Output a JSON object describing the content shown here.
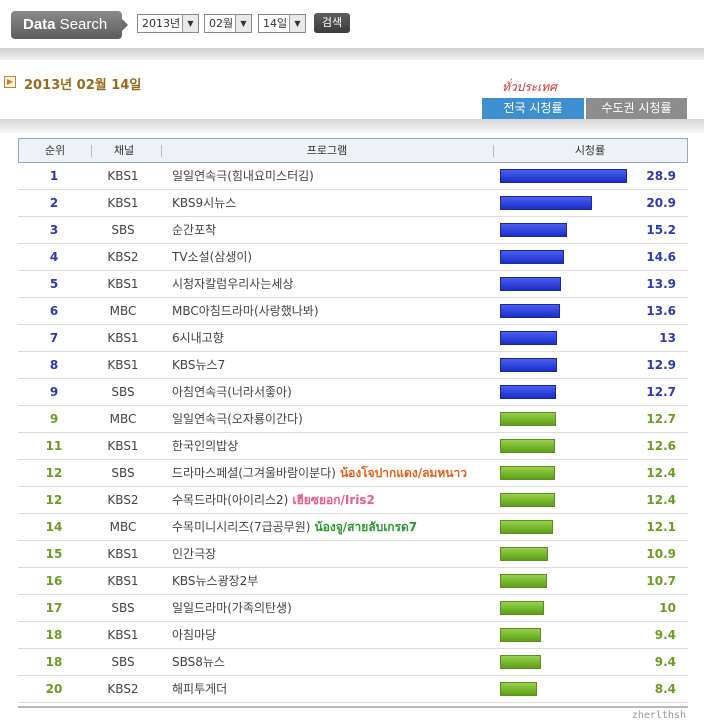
{
  "search": {
    "button_bold": "Data",
    "button_light": " Search",
    "year": "2013년",
    "month": "02월",
    "day": "14일",
    "submit": "검색"
  },
  "heading": {
    "date": "2013년 02월 14일",
    "thai_note": "ทั่วประเทศ"
  },
  "tabs": [
    {
      "label": "전국 시청률",
      "active": true
    },
    {
      "label": "수도권 시청률",
      "active": false
    }
  ],
  "columns": {
    "rank": "순위",
    "channel": "채널",
    "program": "프로그램",
    "rating": "시청률"
  },
  "scale_max": 30,
  "rows": [
    {
      "rank": "1",
      "channel": "KBS1",
      "program": "일일연속극(힘내요미스터김)",
      "rating": "28.9",
      "value": 28.9,
      "color": "blue",
      "note": ""
    },
    {
      "rank": "2",
      "channel": "KBS1",
      "program": "KBS9시뉴스",
      "rating": "20.9",
      "value": 20.9,
      "color": "blue",
      "note": ""
    },
    {
      "rank": "3",
      "channel": "SBS",
      "program": "순간포착",
      "rating": "15.2",
      "value": 15.2,
      "color": "blue",
      "note": ""
    },
    {
      "rank": "4",
      "channel": "KBS2",
      "program": "TV소설(삼생이)",
      "rating": "14.6",
      "value": 14.6,
      "color": "blue",
      "note": ""
    },
    {
      "rank": "5",
      "channel": "KBS1",
      "program": "시청자칼럼우리사는세상",
      "rating": "13.9",
      "value": 13.9,
      "color": "blue",
      "note": ""
    },
    {
      "rank": "6",
      "channel": "MBC",
      "program": "MBC아침드라마(사랑했나봐)",
      "rating": "13.6",
      "value": 13.6,
      "color": "blue",
      "note": ""
    },
    {
      "rank": "7",
      "channel": "KBS1",
      "program": "6시내고향",
      "rating": "13",
      "value": 13.0,
      "color": "blue",
      "note": ""
    },
    {
      "rank": "8",
      "channel": "KBS1",
      "program": "KBS뉴스7",
      "rating": "12.9",
      "value": 12.9,
      "color": "blue",
      "note": ""
    },
    {
      "rank": "9",
      "channel": "SBS",
      "program": "아침연속극(너라서좋아)",
      "rating": "12.7",
      "value": 12.7,
      "color": "blue",
      "note": ""
    },
    {
      "rank": "9",
      "channel": "MBC",
      "program": "일일연속극(오자룡이간다)",
      "rating": "12.7",
      "value": 12.7,
      "color": "green",
      "note": ""
    },
    {
      "rank": "11",
      "channel": "KBS1",
      "program": "한국인의밥상",
      "rating": "12.6",
      "value": 12.6,
      "color": "green",
      "note": ""
    },
    {
      "rank": "12",
      "channel": "SBS",
      "program": "드라마스페셜(그겨울바람이분다)",
      "rating": "12.4",
      "value": 12.4,
      "color": "green",
      "note": "น้องโจปากแดง/ลมหนาว",
      "note_color": "#e8601c"
    },
    {
      "rank": "12",
      "channel": "KBS2",
      "program": "수목드라마(아이리스2)",
      "rating": "12.4",
      "value": 12.4,
      "color": "green",
      "note": "เฮียซยอก/Iris2",
      "note_color": "#ef5a8a"
    },
    {
      "rank": "14",
      "channel": "MBC",
      "program": "수목미니시리즈(7급공무원)",
      "rating": "12.1",
      "value": 12.1,
      "color": "green",
      "note": "น้องจู/สายลับเกรด7",
      "note_color": "#2e9a2e"
    },
    {
      "rank": "15",
      "channel": "KBS1",
      "program": "인간극장",
      "rating": "10.9",
      "value": 10.9,
      "color": "green",
      "note": ""
    },
    {
      "rank": "16",
      "channel": "KBS1",
      "program": "KBS뉴스광장2부",
      "rating": "10.7",
      "value": 10.7,
      "color": "green",
      "note": ""
    },
    {
      "rank": "17",
      "channel": "SBS",
      "program": "일일드라마(가족의탄생)",
      "rating": "10",
      "value": 10.0,
      "color": "green",
      "note": ""
    },
    {
      "rank": "18",
      "channel": "KBS1",
      "program": "아침마당",
      "rating": "9.4",
      "value": 9.4,
      "color": "green",
      "note": ""
    },
    {
      "rank": "18",
      "channel": "SBS",
      "program": "SBS8뉴스",
      "rating": "9.4",
      "value": 9.4,
      "color": "green",
      "note": ""
    },
    {
      "rank": "20",
      "channel": "KBS2",
      "program": "해피투게더",
      "rating": "8.4",
      "value": 8.4,
      "color": "green",
      "note": ""
    }
  ],
  "watermark": "zherlthsh"
}
